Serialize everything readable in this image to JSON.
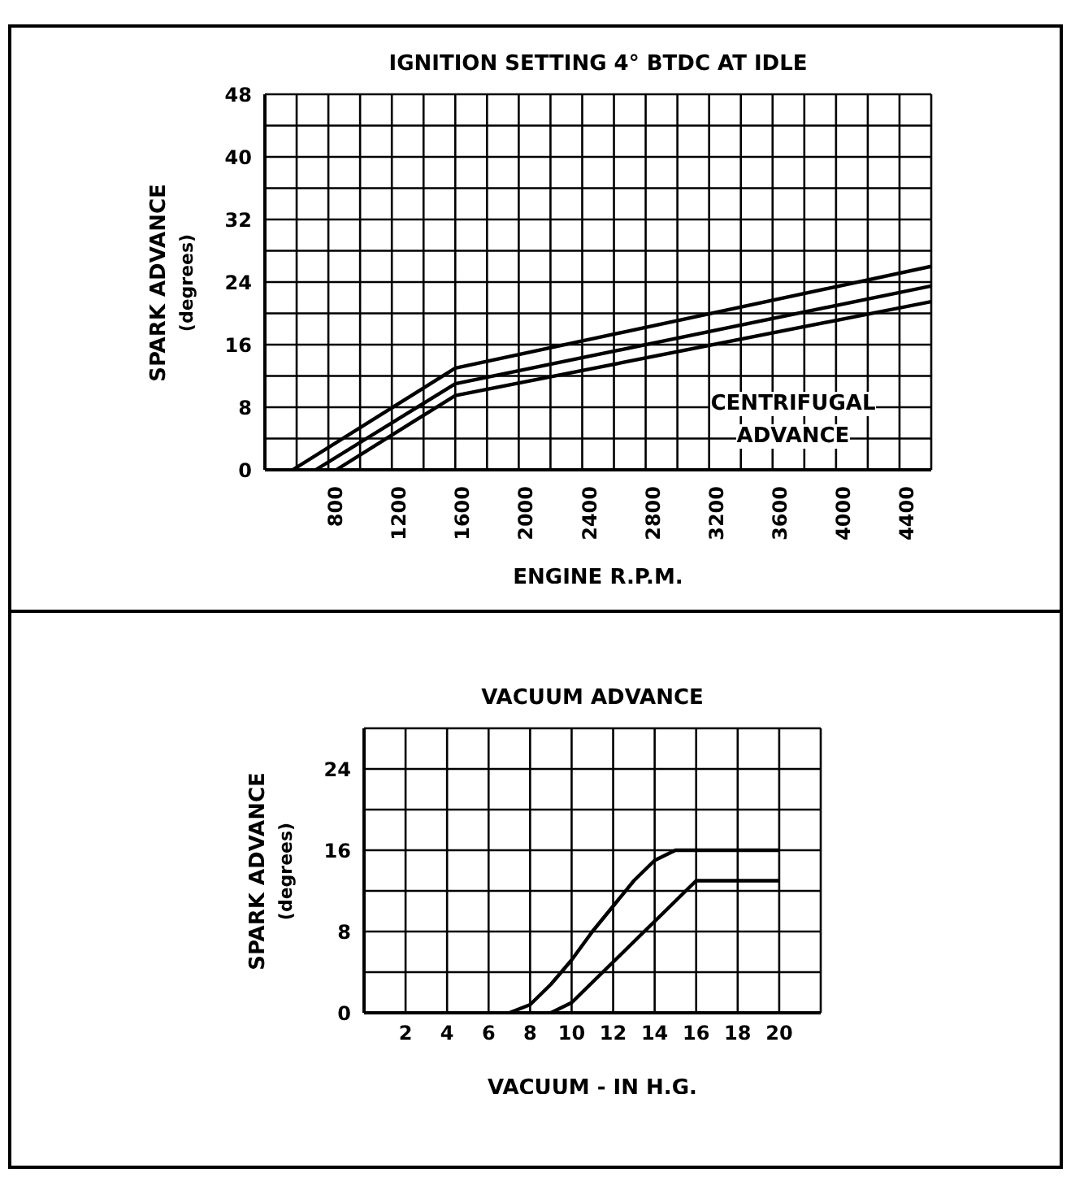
{
  "chart_data": [
    {
      "type": "line",
      "title": "IGNITION SETTING 4° BTDC AT IDLE",
      "xlabel": "ENGINE R.P.M.",
      "ylabel": "SPARK ADVANCE\n(degrees)",
      "annotations": [
        "CENTRIFUGAL\nADVANCE"
      ],
      "xlim": [
        400,
        4600
      ],
      "xticks": [
        {
          "value": 600,
          "label": null
        },
        800,
        {
          "value": 1000,
          "label": null
        },
        1200,
        {
          "value": 1400,
          "label": null
        },
        1600,
        {
          "value": 1800,
          "label": null
        },
        2000,
        {
          "value": 2200,
          "label": null
        },
        2400,
        {
          "value": 2600,
          "label": null
        },
        2800,
        {
          "value": 3000,
          "label": null
        },
        3200,
        {
          "value": 3400,
          "label": null
        },
        3600,
        {
          "value": 3800,
          "label": null
        },
        4000,
        {
          "value": 4200,
          "label": null
        },
        4400,
        {
          "value": 4600,
          "label": null
        }
      ],
      "ylim": [
        0,
        48
      ],
      "yticks": [
        0,
        {
          "value": 4,
          "label": null
        },
        8,
        {
          "value": 12,
          "label": null
        },
        16,
        {
          "value": 20,
          "label": null
        },
        24,
        {
          "value": 28,
          "label": null
        },
        32,
        {
          "value": 36,
          "label": null
        },
        40,
        {
          "value": 44,
          "label": null
        },
        48
      ],
      "grid": true,
      "legend": false,
      "marker": "none",
      "line_style": "solid",
      "series": [
        {
          "color": "#000000",
          "x": [
            575,
            1600,
            4600
          ],
          "values": [
            0,
            13,
            26
          ]
        },
        {
          "color": "#000000",
          "x": [
            720,
            1600,
            4600
          ],
          "values": [
            0,
            11,
            23.5
          ]
        },
        {
          "color": "#000000",
          "x": [
            850,
            1600,
            4600
          ],
          "values": [
            0,
            9.5,
            21.5
          ]
        }
      ]
    },
    {
      "type": "line",
      "title": "VACUUM ADVANCE",
      "xlabel": "VACUUM - IN H.G.",
      "ylabel": "SPARK ADVANCE\n(degrees)",
      "xlim": [
        0,
        22
      ],
      "xticks": [
        2,
        4,
        6,
        8,
        10,
        12,
        14,
        16,
        18,
        20,
        {
          "value": 22,
          "label": null
        }
      ],
      "ylim": [
        0,
        28
      ],
      "yticks": [
        0,
        {
          "value": 4,
          "label": null
        },
        8,
        {
          "value": 12,
          "label": null
        },
        16,
        {
          "value": 20,
          "label": null
        },
        24,
        {
          "value": 28,
          "label": null
        }
      ],
      "grid": true,
      "legend": false,
      "marker": "none",
      "line_style": "solid",
      "series": [
        {
          "color": "#000000",
          "x": [
            7,
            8,
            9,
            10,
            11,
            12,
            13,
            14,
            15,
            20
          ],
          "values": [
            0,
            0.8,
            2.8,
            5.2,
            8,
            10.5,
            13,
            15,
            16,
            16
          ]
        },
        {
          "color": "#000000",
          "x": [
            9,
            10,
            11,
            12,
            13,
            14,
            15,
            16,
            20
          ],
          "values": [
            0,
            1,
            3,
            5,
            7,
            9,
            11,
            13,
            13
          ]
        }
      ]
    }
  ]
}
